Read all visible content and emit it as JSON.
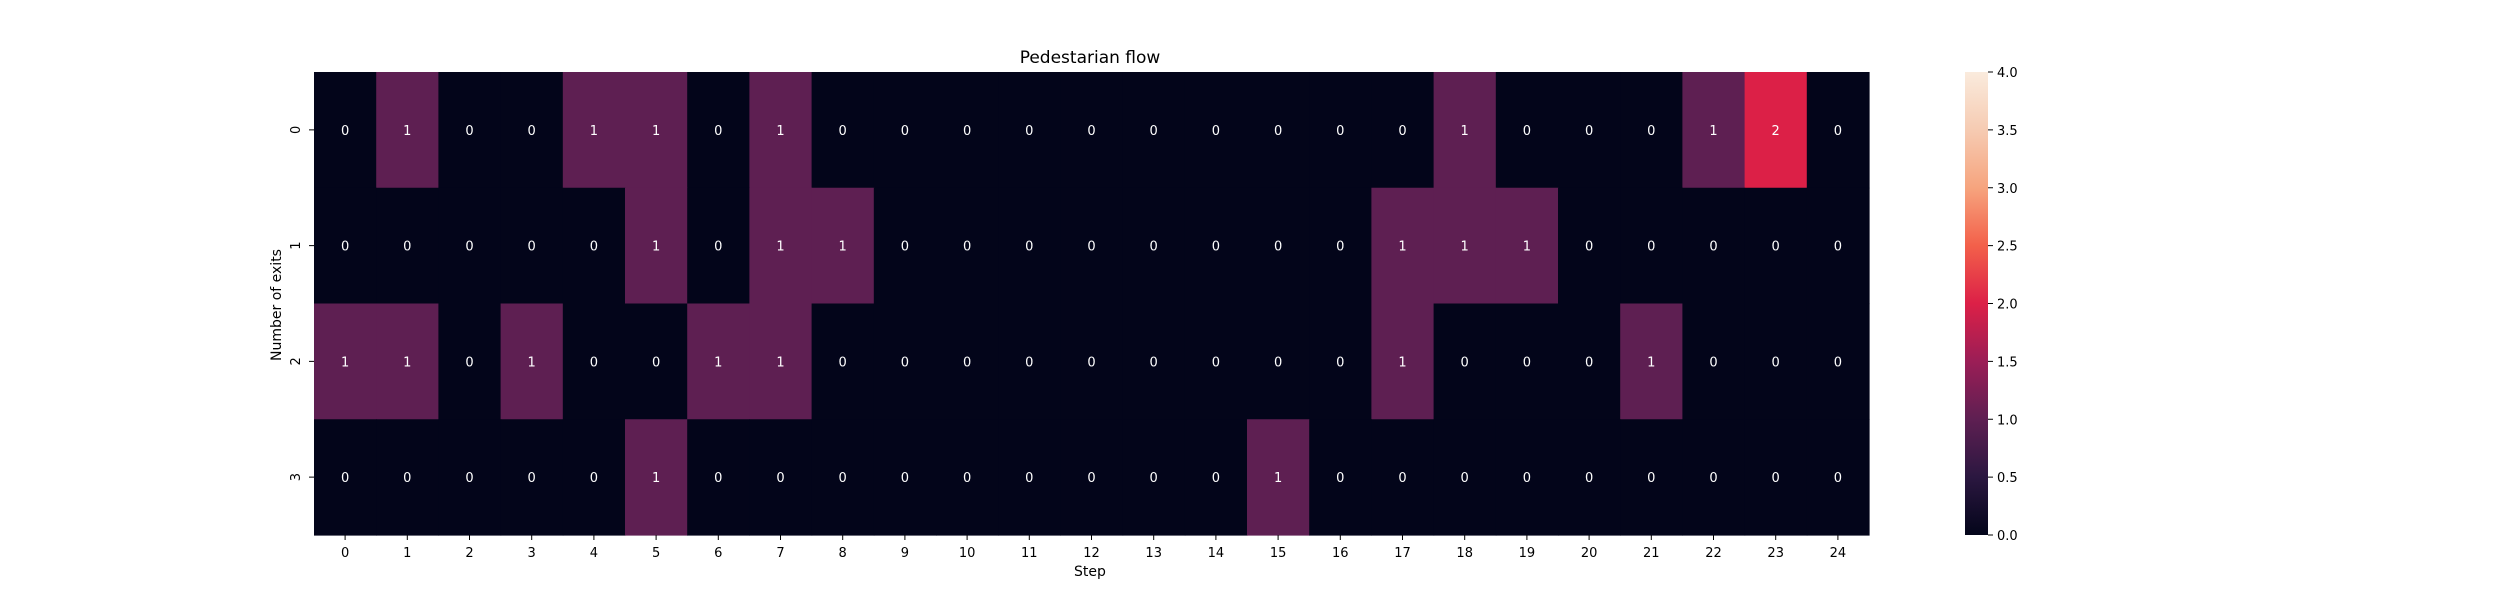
{
  "chart_data": {
    "type": "heatmap",
    "title": "Pedestarian flow",
    "xlabel": "Step",
    "ylabel": "Number of exits",
    "x_categories": [
      "0",
      "1",
      "2",
      "3",
      "4",
      "5",
      "6",
      "7",
      "8",
      "9",
      "10",
      "11",
      "12",
      "13",
      "14",
      "15",
      "16",
      "17",
      "18",
      "19",
      "20",
      "21",
      "22",
      "23",
      "24"
    ],
    "y_categories": [
      "0",
      "1",
      "2",
      "3"
    ],
    "values": [
      [
        0,
        1,
        0,
        0,
        1,
        1,
        0,
        1,
        0,
        0,
        0,
        0,
        0,
        0,
        0,
        0,
        0,
        0,
        1,
        0,
        0,
        0,
        1,
        2,
        0
      ],
      [
        0,
        0,
        0,
        0,
        0,
        1,
        0,
        1,
        1,
        0,
        0,
        0,
        0,
        0,
        0,
        0,
        0,
        1,
        1,
        1,
        0,
        0,
        0,
        0,
        0
      ],
      [
        1,
        1,
        0,
        1,
        0,
        0,
        1,
        1,
        0,
        0,
        0,
        0,
        0,
        0,
        0,
        0,
        0,
        1,
        0,
        0,
        0,
        1,
        0,
        0,
        0
      ],
      [
        0,
        0,
        0,
        0,
        0,
        1,
        0,
        0,
        0,
        0,
        0,
        0,
        0,
        0,
        0,
        1,
        0,
        0,
        0,
        0,
        0,
        0,
        0,
        0,
        0
      ]
    ],
    "annotations": true,
    "colorbar": {
      "range": [
        0,
        4
      ],
      "ticks": [
        "0.0",
        "0.5",
        "1.0",
        "1.5",
        "2.0",
        "2.5",
        "3.0",
        "3.5",
        "4.0"
      ],
      "colormap": "rocket"
    },
    "colors": {
      "zero": "#03051a",
      "one": "#5e1f52",
      "two": "#dc2047",
      "top": "#faebdd"
    }
  }
}
